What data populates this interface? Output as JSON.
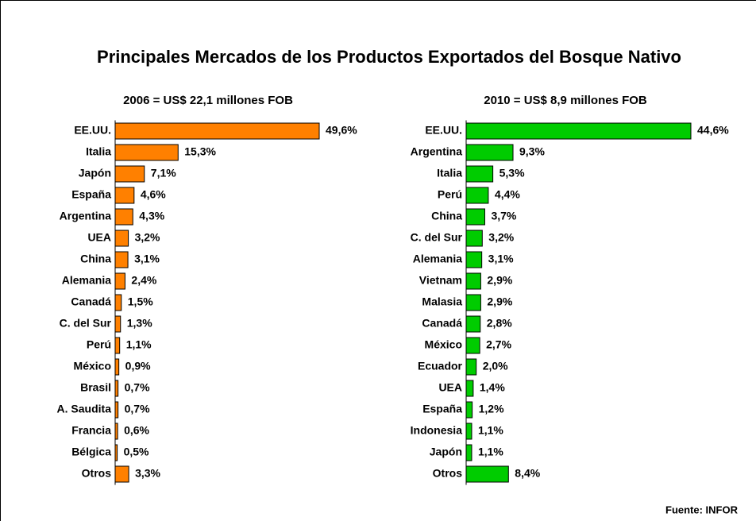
{
  "title": "Principales Mercados de los Productos Exportados del  Bosque Nativo",
  "source": "Fuente: INFOR",
  "chart_data": [
    {
      "type": "bar",
      "orientation": "horizontal",
      "subtitle": "2006 = US$ 22,1 millones FOB",
      "color": "#ff8000",
      "categories": [
        "EE.UU.",
        "Italia",
        "Japón",
        "España",
        "Argentina",
        "UEA",
        "China",
        "Alemania",
        "Canadá",
        "C. del Sur",
        "Perú",
        "México",
        "Brasil",
        "A. Saudita",
        "Francia",
        "Bélgica",
        "Otros"
      ],
      "values": [
        49.6,
        15.3,
        7.1,
        4.6,
        4.3,
        3.2,
        3.1,
        2.4,
        1.5,
        1.3,
        1.1,
        0.9,
        0.7,
        0.7,
        0.6,
        0.5,
        3.3
      ],
      "value_labels": [
        "49,6%",
        "15,3%",
        "7,1%",
        "4,6%",
        "4,3%",
        "3,2%",
        "3,1%",
        "2,4%",
        "1,5%",
        "1,3%",
        "1,1%",
        "0,9%",
        "0,7%",
        "0,7%",
        "0,6%",
        "0,5%",
        "3,3%"
      ]
    },
    {
      "type": "bar",
      "orientation": "horizontal",
      "subtitle": "2010 = US$ 8,9 millones FOB",
      "color": "#00cc00",
      "categories": [
        "EE.UU.",
        "Argentina",
        "Italia",
        "Perú",
        "China",
        "C. del Sur",
        "Alemania",
        "Vietnam",
        "Malasia",
        "Canadá",
        "México",
        "Ecuador",
        "UEA",
        "España",
        "Indonesia",
        "Japón",
        "Otros"
      ],
      "values": [
        44.6,
        9.3,
        5.3,
        4.4,
        3.7,
        3.2,
        3.1,
        2.9,
        2.9,
        2.8,
        2.7,
        2.0,
        1.4,
        1.2,
        1.1,
        1.1,
        8.4
      ],
      "value_labels": [
        "44,6%",
        "9,3%",
        "5,3%",
        "4,4%",
        "3,7%",
        "3,2%",
        "3,1%",
        "2,9%",
        "2,9%",
        "2,8%",
        "2,7%",
        "2,0%",
        "1,4%",
        "1,2%",
        "1,1%",
        "1,1%",
        "8,4%"
      ]
    }
  ]
}
